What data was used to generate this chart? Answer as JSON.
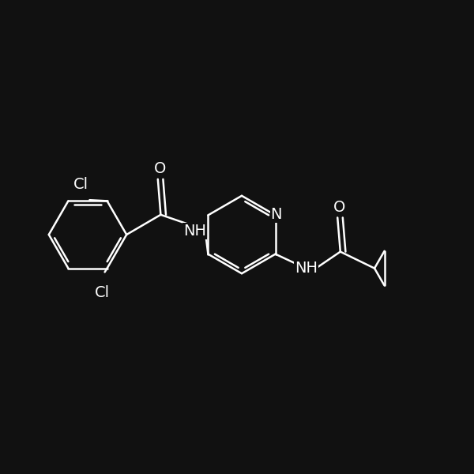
{
  "bg_color": "#111111",
  "line_color": "#ffffff",
  "line_width": 1.8,
  "font_size": 14,
  "figsize": [
    6.0,
    6.0
  ],
  "dpi": 100,
  "xlim": [
    0,
    10
  ],
  "ylim": [
    0,
    10
  ]
}
